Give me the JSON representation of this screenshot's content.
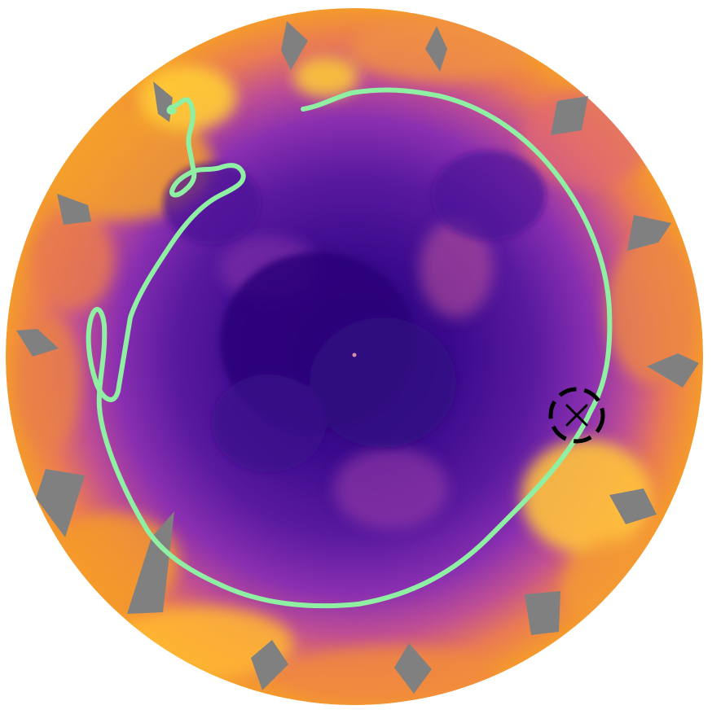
{
  "map": {
    "projection": "south-polar-stereographic",
    "colors": {
      "background": "#ffffff",
      "deep": "#3a0a8c",
      "mid": "#7a2ab0",
      "warm": "#d9608a",
      "hot": "#f3952c",
      "peak": "#ffcc33",
      "track": "#8ff0a4",
      "gap": "#808080",
      "marker": "#000000"
    },
    "layers": [
      "background-field",
      "no-data-wedges",
      "trajectory-line",
      "target-marker"
    ],
    "marker_icon": "crosshair-x-icon",
    "labels": []
  }
}
